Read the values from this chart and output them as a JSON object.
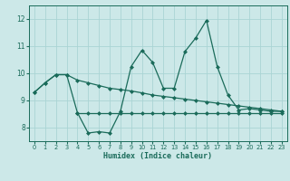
{
  "xlabel": "Humidex (Indice chaleur)",
  "background_color": "#cce8e8",
  "grid_color": "#aad4d4",
  "line_color": "#1a6b5a",
  "xlim": [
    -0.5,
    23.5
  ],
  "ylim": [
    7.5,
    12.5
  ],
  "yticks": [
    8,
    9,
    10,
    11,
    12
  ],
  "xticks": [
    0,
    1,
    2,
    3,
    4,
    5,
    6,
    7,
    8,
    9,
    10,
    11,
    12,
    13,
    14,
    15,
    16,
    17,
    18,
    19,
    20,
    21,
    22,
    23
  ],
  "line1_x": [
    0,
    1,
    2,
    3,
    4,
    5,
    6,
    7,
    8,
    9,
    10,
    11,
    12,
    13,
    14,
    15,
    16,
    17,
    18,
    19,
    20,
    21,
    22,
    23
  ],
  "line1_y": [
    9.3,
    9.65,
    9.95,
    9.95,
    8.55,
    7.8,
    7.85,
    7.8,
    8.6,
    10.25,
    10.85,
    10.4,
    9.45,
    9.45,
    10.8,
    11.3,
    11.95,
    10.25,
    9.2,
    8.65,
    8.7,
    8.65,
    8.6,
    8.6
  ],
  "line2_x": [
    0,
    1,
    2,
    3,
    4,
    5,
    6,
    7,
    8,
    9,
    10,
    11,
    12,
    13,
    14,
    15,
    16,
    17,
    18,
    19,
    20,
    21,
    22,
    23
  ],
  "line2_y": [
    9.3,
    9.65,
    9.95,
    9.95,
    9.75,
    9.65,
    9.55,
    9.45,
    9.4,
    9.35,
    9.28,
    9.2,
    9.15,
    9.1,
    9.05,
    9.0,
    8.95,
    8.9,
    8.85,
    8.8,
    8.75,
    8.7,
    8.65,
    8.6
  ],
  "line3_x": [
    4,
    5,
    6,
    7,
    8,
    9,
    10,
    11,
    12,
    13,
    14,
    15,
    16,
    17,
    18,
    19,
    20,
    21,
    22,
    23
  ],
  "line3_y": [
    8.55,
    8.55,
    8.55,
    8.55,
    8.55,
    8.55,
    8.55,
    8.55,
    8.55,
    8.55,
    8.55,
    8.55,
    8.55,
    8.55,
    8.55,
    8.55,
    8.55,
    8.55,
    8.55,
    8.55
  ]
}
